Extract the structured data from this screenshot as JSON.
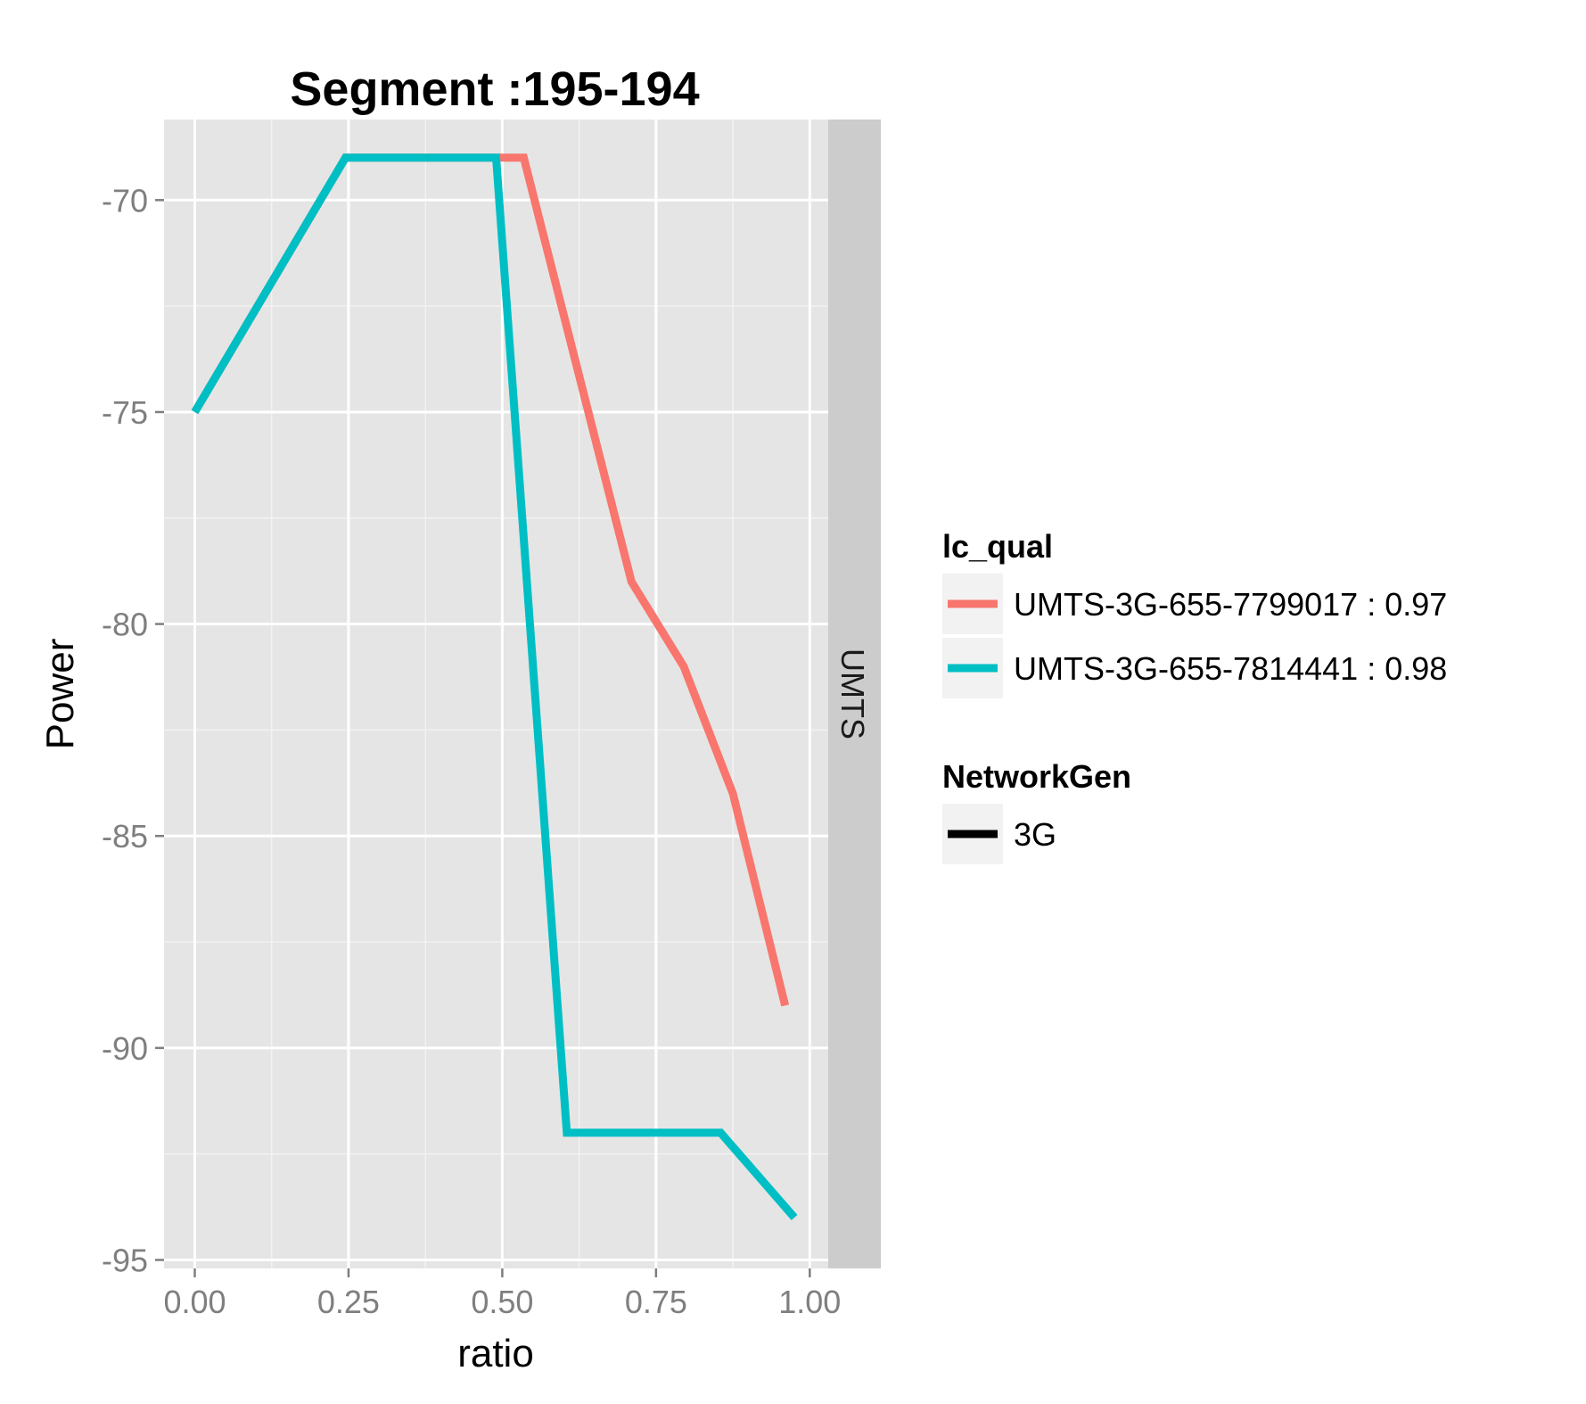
{
  "chart_data": {
    "type": "line",
    "title": "Segment :195-194",
    "xlabel": "ratio",
    "ylabel": "Power",
    "facet_label": "UMTS",
    "xlim": [
      -0.05,
      1.03
    ],
    "ylim": [
      -95.2,
      -68.1
    ],
    "x_ticks": [
      0,
      0.25,
      0.5,
      0.75,
      1
    ],
    "x_tick_labels": [
      "0.00",
      "0.25",
      "0.50",
      "0.75",
      "1.00"
    ],
    "y_ticks": [
      -70,
      -75,
      -80,
      -85,
      -90,
      -95
    ],
    "y_tick_labels": [
      "-70",
      "-75",
      "-80",
      "-85",
      "-90",
      "-95"
    ],
    "grid": true,
    "legend_position": "right",
    "series": [
      {
        "name": "UMTS-3G-655-7799017 : 0.97",
        "color": "#F8766D",
        "x": [
          0.0,
          0.245,
          0.5,
          0.535,
          0.71,
          0.795,
          0.875,
          0.96
        ],
        "y": [
          -75,
          -69,
          -69,
          -69,
          -79,
          -81,
          -84,
          -89
        ]
      },
      {
        "name": "UMTS-3G-655-7814441 : 0.98",
        "color": "#00BFC4",
        "x": [
          0.0,
          0.245,
          0.49,
          0.605,
          0.855,
          0.975
        ],
        "y": [
          -75,
          -69,
          -69,
          -92,
          -92,
          -94
        ]
      }
    ],
    "legends": [
      {
        "title": "lc_qual",
        "items": [
          {
            "label": "UMTS-3G-655-7799017 : 0.97",
            "color": "#F8766D"
          },
          {
            "label": "UMTS-3G-655-7814441 : 0.98",
            "color": "#00BFC4"
          }
        ]
      },
      {
        "title": "NetworkGen",
        "items": [
          {
            "label": "3G",
            "color": "#000000"
          }
        ]
      }
    ]
  }
}
